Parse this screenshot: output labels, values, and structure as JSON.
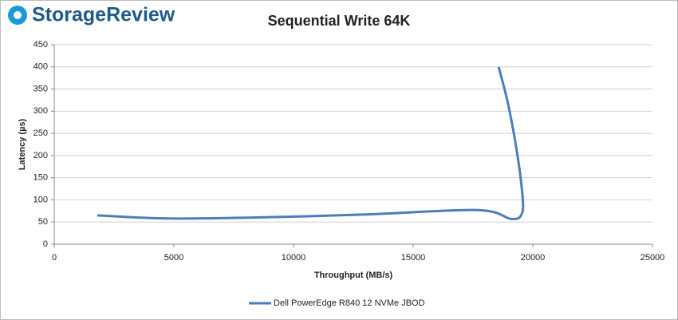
{
  "brand": "StorageReview",
  "chart_data": {
    "type": "line",
    "title": "Sequential Write 64K",
    "x_label": "Throughput (MB/s)",
    "y_label": "Latency (µs)",
    "x": [
      1800,
      4800,
      9000,
      13000,
      17700,
      19100,
      19550,
      19550,
      19300,
      18950,
      18570
    ],
    "series": [
      {
        "name": "Dell PowerEdge R840 12 NVMe JBOD",
        "color": "#4a7ebb",
        "values": [
          65,
          58,
          61,
          67,
          77,
          57,
          70,
          120,
          220,
          320,
          400
        ]
      }
    ],
    "xlim": [
      0,
      25000
    ],
    "ylim": [
      0,
      450
    ],
    "xticks": [
      0,
      5000,
      10000,
      15000,
      20000,
      25000
    ],
    "yticks": [
      0,
      50,
      100,
      150,
      200,
      250,
      300,
      350,
      400,
      450
    ],
    "grid": true
  }
}
